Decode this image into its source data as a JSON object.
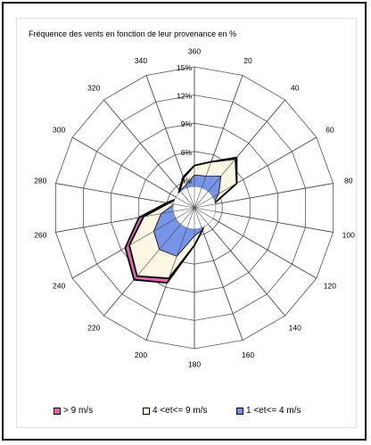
{
  "chart_data": {
    "type": "radar",
    "title": "Fréquence des vents en fonction de leur provenance en %",
    "directions": [
      "360",
      "20",
      "40",
      "60",
      "80",
      "100",
      "120",
      "140",
      "160",
      "180",
      "200",
      "220",
      "240",
      "260",
      "280",
      "300",
      "320",
      "340"
    ],
    "radial_ticks": [
      "3%",
      "6%",
      "9%",
      "12%",
      "15%"
    ],
    "radial_max": 15,
    "series": [
      {
        "name": "> 9 m/s",
        "color": "#e060b0",
        "values": [
          4.5,
          5.2,
          7.0,
          5.2,
          2.0,
          1.5,
          1.5,
          1.8,
          2.5,
          4.0,
          8.5,
          10.0,
          8.5,
          6.0,
          3.0,
          2.0,
          2.5,
          3.5
        ]
      },
      {
        "name": "4 <et<= 9 m/s",
        "color": "#ffffe6",
        "values": [
          4.5,
          5.2,
          6.8,
          5.2,
          2.0,
          1.5,
          1.5,
          1.8,
          2.5,
          4.0,
          8.0,
          9.5,
          8.0,
          5.5,
          2.8,
          2.0,
          2.4,
          3.4
        ]
      },
      {
        "name": "1 <et<= 4 m/s",
        "color": "#6f8fe8",
        "values": [
          3.5,
          3.6,
          4.4,
          3.0,
          2.0,
          1.5,
          1.5,
          1.8,
          2.5,
          3.0,
          5.5,
          5.8,
          5.0,
          3.6,
          2.2,
          2.0,
          2.4,
          2.6
        ]
      }
    ],
    "legend_position": "bottom",
    "grid": true
  }
}
